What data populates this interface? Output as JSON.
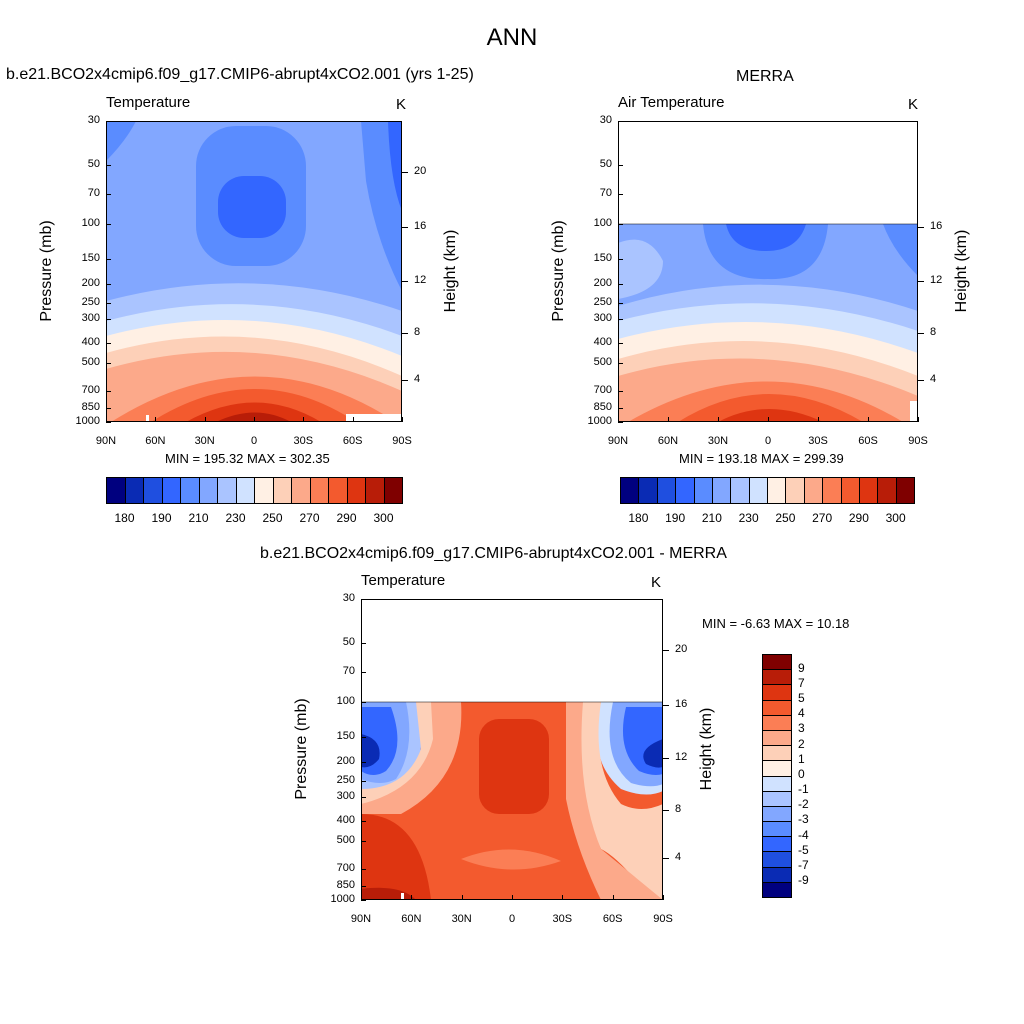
{
  "suptitle": "ANN",
  "panels": [
    {
      "title": "b.e21.BCO2x4cmip6.f09_g17.CMIP6-abrupt4xCO2.001 (yrs 1-25)",
      "left_label": "Temperature",
      "right_label": "K",
      "ylabel": "Pressure (mb)",
      "y2label": "Height (km)",
      "minmax": "MIN = 195.32  MAX = 302.35"
    },
    {
      "title": "MERRA",
      "left_label": "Air Temperature",
      "right_label": "K",
      "ylabel": "Pressure (mb)",
      "y2label": "Height (km)",
      "minmax": "MIN = 193.18  MAX = 299.39"
    },
    {
      "title": "b.e21.BCO2x4cmip6.f09_g17.CMIP6-abrupt4xCO2.001 - MERRA",
      "left_label": "Temperature",
      "right_label": "K",
      "ylabel": "Pressure (mb)",
      "y2label": "Height (km)",
      "minmax": "MIN =  -6.63  MAX =  10.18"
    }
  ],
  "chart_data": [
    {
      "type": "heatmap",
      "title": "b.e21.BCO2x4cmip6.f09_g17.CMIP6-abrupt4xCO2.001 (yrs 1-25)",
      "field": "Temperature",
      "units": "K",
      "xlabel": "",
      "ylabel": "Pressure (mb)",
      "y2label": "Height (km)",
      "xticks": [
        "90N",
        "60N",
        "30N",
        "0",
        "30S",
        "60S",
        "90S"
      ],
      "xlim": [
        90,
        -90
      ],
      "yticks": [
        30,
        50,
        70,
        100,
        150,
        200,
        250,
        300,
        400,
        500,
        700,
        850,
        1000
      ],
      "ylim": [
        1000,
        30
      ],
      "y2ticks": [
        4,
        8,
        12,
        16,
        20
      ],
      "min": 195.32,
      "max": 302.35,
      "data_top_mb": 30,
      "colorbar_ticks": [
        180,
        190,
        210,
        230,
        250,
        270,
        290,
        300
      ]
    },
    {
      "type": "heatmap",
      "title": "MERRA",
      "field": "Air Temperature",
      "units": "K",
      "xlabel": "",
      "ylabel": "Pressure (mb)",
      "y2label": "Height (km)",
      "xticks": [
        "90N",
        "60N",
        "30N",
        "0",
        "30S",
        "60S",
        "90S"
      ],
      "xlim": [
        90,
        -90
      ],
      "yticks": [
        30,
        50,
        70,
        100,
        150,
        200,
        250,
        300,
        400,
        500,
        700,
        850,
        1000
      ],
      "ylim": [
        1000,
        30
      ],
      "y2ticks": [
        4,
        8,
        12,
        16
      ],
      "min": 193.18,
      "max": 299.39,
      "data_top_mb": 100,
      "colorbar_ticks": [
        180,
        190,
        210,
        230,
        250,
        270,
        290,
        300
      ]
    },
    {
      "type": "heatmap",
      "title": "b.e21.BCO2x4cmip6.f09_g17.CMIP6-abrupt4xCO2.001 - MERRA",
      "field": "Temperature",
      "units": "K",
      "xlabel": "",
      "ylabel": "Pressure (mb)",
      "y2label": "Height (km)",
      "xticks": [
        "90N",
        "60N",
        "30N",
        "0",
        "30S",
        "60S",
        "90S"
      ],
      "xlim": [
        90,
        -90
      ],
      "yticks": [
        30,
        50,
        70,
        100,
        150,
        200,
        250,
        300,
        400,
        500,
        700,
        850,
        1000
      ],
      "ylim": [
        1000,
        30
      ],
      "y2ticks": [
        4,
        8,
        12,
        16,
        20
      ],
      "min": -6.63,
      "max": 10.18,
      "data_top_mb": 100,
      "colorbar_ticks": [
        9,
        7,
        5,
        4,
        3,
        2,
        1,
        0,
        -1,
        -2,
        -3,
        -4,
        -5,
        -7,
        -9
      ]
    }
  ],
  "colors": {
    "temperature_scale": [
      "#00007f",
      "#0a2bb4",
      "#1f4fe0",
      "#3366ff",
      "#5a8cff",
      "#82a7ff",
      "#aac4ff",
      "#d0e2ff",
      "#fff0e4",
      "#fdd0b8",
      "#fca98a",
      "#fb7e55",
      "#f35a2e",
      "#de3511",
      "#b81d08",
      "#7f0000"
    ],
    "difference_scale": [
      "#7f0000",
      "#b81d08",
      "#de3511",
      "#f35a2e",
      "#fb7e55",
      "#fca98a",
      "#fdd0b8",
      "#fff0e4",
      "#d0e2ff",
      "#aac4ff",
      "#82a7ff",
      "#5a8cff",
      "#3366ff",
      "#1f4fe0",
      "#0a2bb4",
      "#00007f"
    ]
  }
}
